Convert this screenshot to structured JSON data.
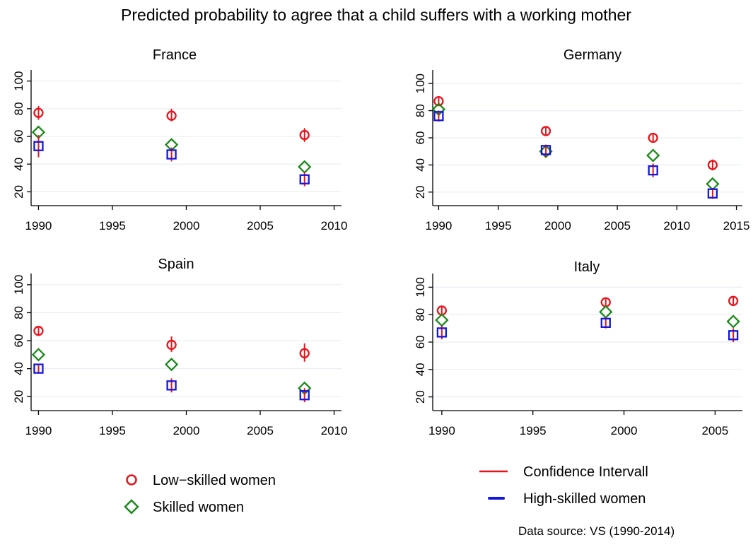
{
  "title": "Predicted probability to agree that a child suffers with a working mother",
  "source_note": "Data source: VS (1990-2014)",
  "colors": {
    "low_skilled": "#e8141b",
    "skilled": "#1a8a1a",
    "high_skilled": "#1515e0",
    "confidence_interval": "#e8141b",
    "grid": "#e8eff3",
    "axis": "#000000"
  },
  "legend": {
    "low_skilled": "Low−skilled women",
    "skilled": "Skilled women",
    "confidence_interval": "Confidence Intervall",
    "high_skilled": "High-skilled women"
  },
  "chart_data": [
    {
      "type": "scatter",
      "title": "France",
      "xlabel": "",
      "ylabel": "",
      "x_ticks": [
        1990,
        1995,
        2000,
        2005,
        2010
      ],
      "y_ticks": [
        20,
        40,
        60,
        80,
        100
      ],
      "xlim": [
        1989.5,
        2010.5
      ],
      "ylim": [
        10,
        108
      ],
      "grid": true,
      "x": [
        1990,
        1999,
        2008
      ],
      "series": [
        {
          "name": "Low−skilled women",
          "marker": "circle",
          "values": [
            77,
            75,
            61
          ],
          "ci": [
            [
              72,
              82
            ],
            [
              71,
              80
            ],
            [
              56,
              66
            ]
          ]
        },
        {
          "name": "Skilled women",
          "marker": "diamond",
          "values": [
            63,
            54,
            38
          ]
        },
        {
          "name": "High-skilled women",
          "marker": "square",
          "values": [
            53,
            47,
            29
          ],
          "ci": [
            [
              45,
              61
            ],
            [
              42,
              52
            ],
            [
              24,
              34
            ]
          ]
        }
      ]
    },
    {
      "type": "scatter",
      "title": "Germany",
      "xlabel": "",
      "ylabel": "",
      "x_ticks": [
        1990,
        1995,
        2000,
        2005,
        2010,
        2015
      ],
      "y_ticks": [
        20,
        40,
        60,
        80,
        100
      ],
      "xlim": [
        1989.5,
        2015.5
      ],
      "ylim": [
        10,
        110
      ],
      "grid": true,
      "x": [
        1990,
        1999,
        2008,
        2013
      ],
      "series": [
        {
          "name": "Low−skilled women",
          "marker": "circle",
          "values": [
            87,
            65,
            60,
            40
          ],
          "ci": [
            [
              84,
              90
            ],
            [
              62,
              68
            ],
            [
              57,
              63
            ],
            [
              36,
              44
            ]
          ]
        },
        {
          "name": "Skilled women",
          "marker": "diamond",
          "values": [
            81,
            50,
            47,
            26
          ]
        },
        {
          "name": "High-skilled women",
          "marker": "square",
          "values": [
            76,
            51,
            36,
            19
          ],
          "ci": [
            [
              72,
              80
            ],
            [
              46,
              55
            ],
            [
              31,
              41
            ],
            [
              15,
              23
            ]
          ]
        }
      ]
    },
    {
      "type": "scatter",
      "title": "Spain",
      "xlabel": "",
      "ylabel": "",
      "x_ticks": [
        1990,
        1995,
        2000,
        2005,
        2010
      ],
      "y_ticks": [
        20,
        40,
        60,
        80,
        100
      ],
      "xlim": [
        1989.5,
        2010.5
      ],
      "ylim": [
        10,
        108
      ],
      "grid": true,
      "x": [
        1990,
        1999,
        2008
      ],
      "series": [
        {
          "name": "Low−skilled women",
          "marker": "circle",
          "values": [
            67,
            57,
            51
          ],
          "ci": [
            [
              64,
              70
            ],
            [
              52,
              63
            ],
            [
              45,
              58
            ]
          ]
        },
        {
          "name": "Skilled women",
          "marker": "diamond",
          "values": [
            50,
            43,
            26
          ]
        },
        {
          "name": "High-skilled women",
          "marker": "square",
          "values": [
            40,
            28,
            21
          ],
          "ci": [
            [
              37,
              43
            ],
            [
              23,
              33
            ],
            [
              16,
              26
            ]
          ]
        }
      ]
    },
    {
      "type": "scatter",
      "title": "Italy",
      "xlabel": "",
      "ylabel": "",
      "x_ticks": [
        1990,
        1995,
        2000,
        2005
      ],
      "y_ticks": [
        20,
        40,
        60,
        80,
        100
      ],
      "xlim": [
        1989.5,
        2006.5
      ],
      "ylim": [
        10,
        110
      ],
      "grid": true,
      "x": [
        1990,
        1999,
        2006
      ],
      "series": [
        {
          "name": "Low−skilled women",
          "marker": "circle",
          "values": [
            83,
            89,
            90
          ],
          "ci": [
            [
              80,
              86
            ],
            [
              86,
              92
            ],
            [
              87,
              93
            ]
          ]
        },
        {
          "name": "Skilled women",
          "marker": "diamond",
          "values": [
            76,
            82,
            75
          ]
        },
        {
          "name": "High-skilled women",
          "marker": "square",
          "values": [
            67,
            74,
            65
          ],
          "ci": [
            [
              62,
              72
            ],
            [
              70,
              78
            ],
            [
              60,
              70
            ]
          ]
        }
      ]
    }
  ]
}
